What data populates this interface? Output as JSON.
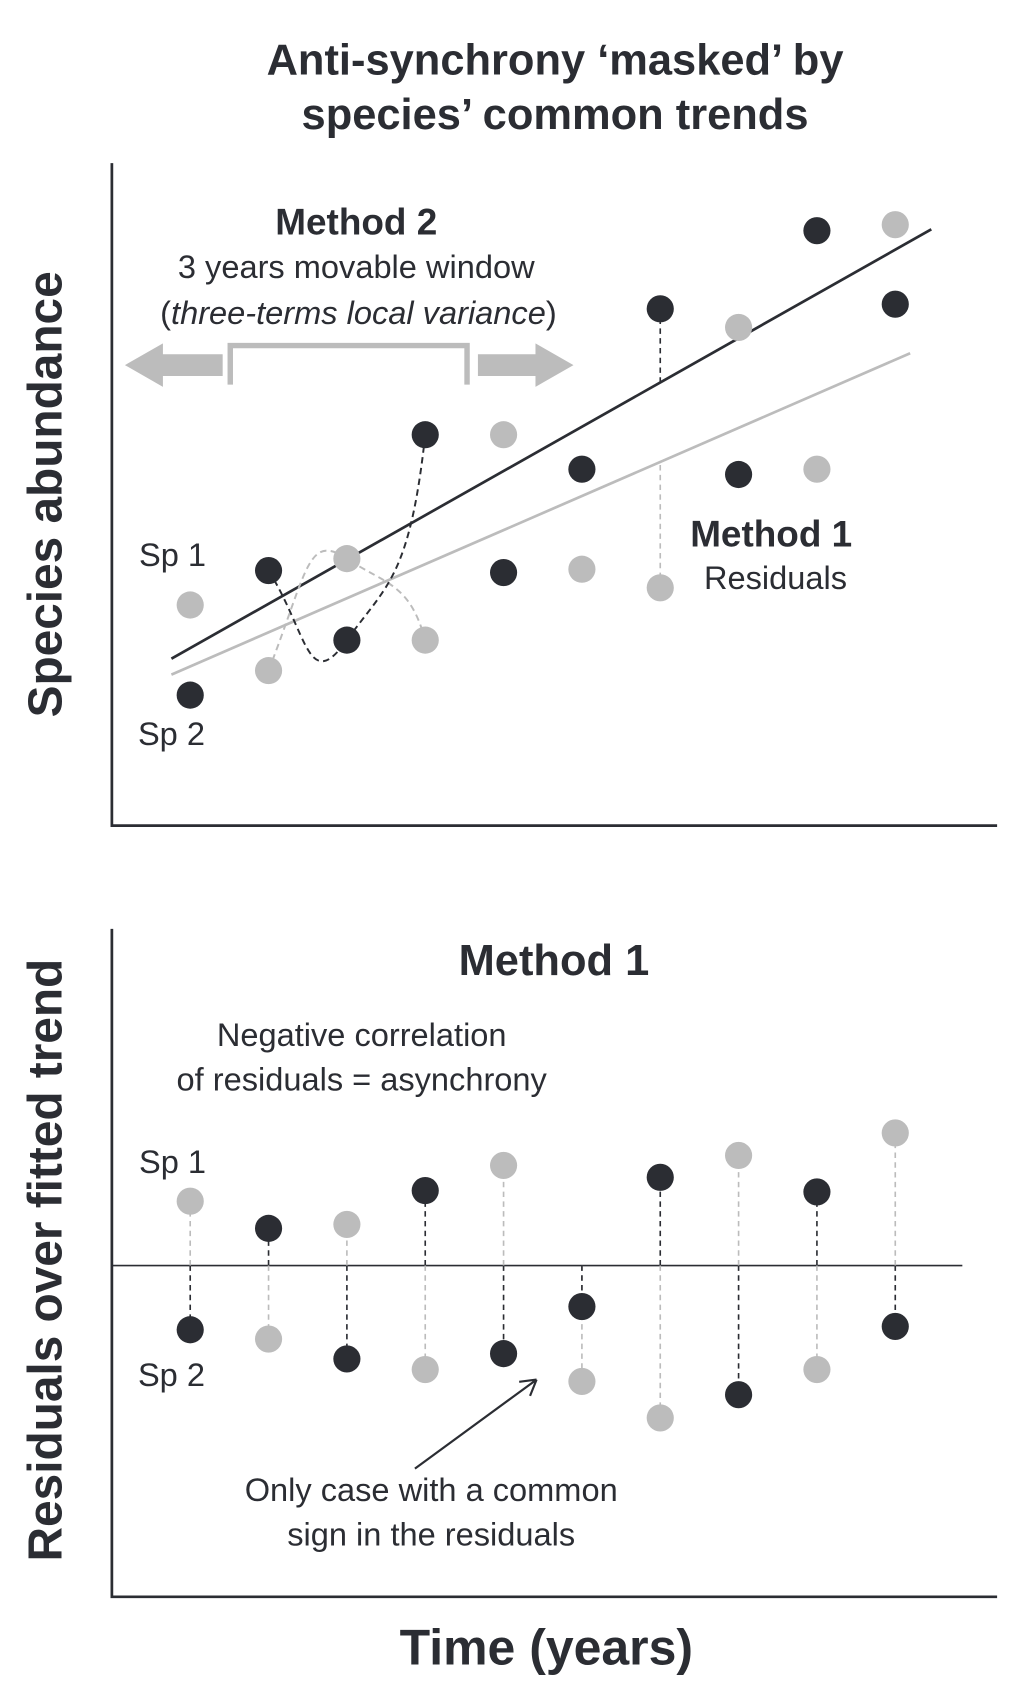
{
  "title": [
    "Anti-synchrony ‘masked’ by",
    "species’ common trends"
  ],
  "x_label": "Time (years)",
  "chart_data": [
    {
      "type": "scatter",
      "y_label": "Species abundance",
      "x": [
        1,
        2,
        3,
        4,
        5,
        6,
        7,
        8,
        9,
        10
      ],
      "xlim": [
        0,
        11.3
      ],
      "ylim": [
        0,
        100
      ],
      "series": [
        {
          "name": "Sp 1",
          "color": "#bcbcbc",
          "values": [
            33.3,
            23.4,
            40.3,
            28.0,
            59.0,
            38.7,
            35.9,
            75.2,
            53.8,
            90.7
          ]
        },
        {
          "name": "Sp 2",
          "color": "#2b2d33",
          "values": [
            19.7,
            38.5,
            28.0,
            59.0,
            38.2,
            53.8,
            78.0,
            53.0,
            89.8,
            78.7
          ]
        }
      ],
      "trend_lines": [
        {
          "color": "#bcbcbc",
          "x": [
            0.76,
            10.19
          ],
          "values": [
            22.8,
            71.3
          ]
        },
        {
          "color": "#2b2d33",
          "x": [
            0.76,
            10.46
          ],
          "values": [
            25.2,
            90.0
          ]
        }
      ],
      "method2": {
        "title": "Method 2",
        "line1": "3 years movable window",
        "line2": "(three-terms local variance)"
      },
      "method1": {
        "title": "Method 1",
        "subtitle": "Residuals"
      }
    },
    {
      "type": "residual",
      "y_label": "Residuals over fitted trend",
      "x": [
        1,
        2,
        3,
        4,
        5,
        6,
        7,
        8,
        9,
        10
      ],
      "xlim": [
        0,
        11.3
      ],
      "ylim": [
        -50,
        50.8
      ],
      "series": [
        {
          "name": "Sp 1",
          "color": "#bcbcbc",
          "values": [
            9.7,
            -11.1,
            6.2,
            -15.7,
            15.1,
            -17.5,
            -23.0,
            16.6,
            -15.7,
            20.0
          ]
        },
        {
          "name": "Sp 2",
          "color": "#2b2d33",
          "values": [
            -9.7,
            5.6,
            -14.1,
            11.3,
            -13.3,
            -6.2,
            13.3,
            -19.5,
            11.1,
            -9.2
          ]
        }
      ],
      "title": "Method 1",
      "note": [
        "Negative correlation",
        "of residuals = asynchrony"
      ],
      "callout": [
        "Only case with a common",
        "sign in the residuals"
      ]
    }
  ]
}
